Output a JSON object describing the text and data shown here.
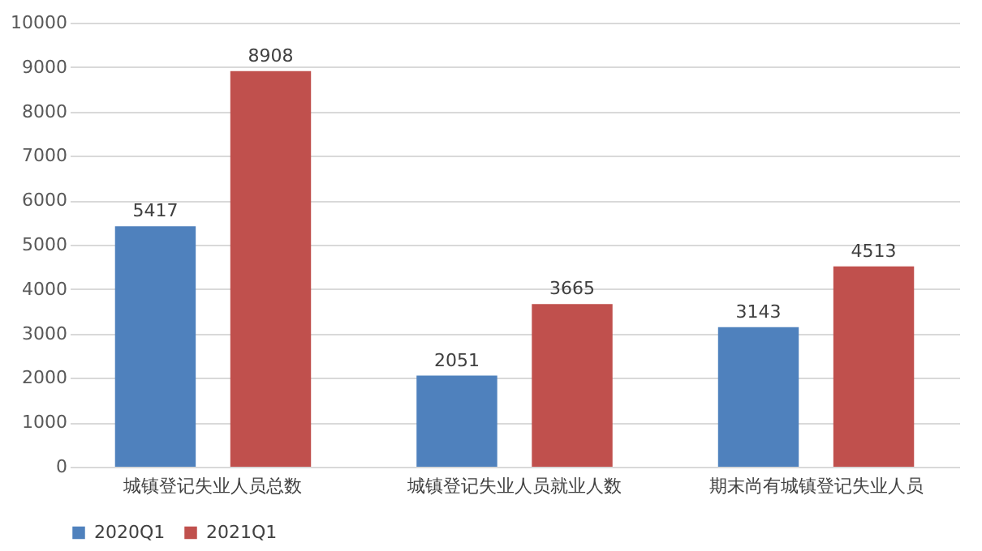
{
  "chart_data": {
    "type": "bar",
    "categories": [
      "城镇登记失业人员总数",
      "城镇登记失业人员就业人数",
      "期末尚有城镇登记失业人员"
    ],
    "series": [
      {
        "name": "2020Q1",
        "color": "#4f81bd",
        "values": [
          5417,
          2051,
          3143
        ]
      },
      {
        "name": "2021Q1",
        "color": "#c0504d",
        "values": [
          8908,
          3665,
          4513
        ]
      }
    ],
    "ylim": [
      0,
      10000
    ],
    "yticks": [
      0,
      1000,
      2000,
      3000,
      4000,
      5000,
      6000,
      7000,
      8000,
      9000,
      10000
    ],
    "grid": "y",
    "legend": "bottom",
    "data_labels": true
  }
}
